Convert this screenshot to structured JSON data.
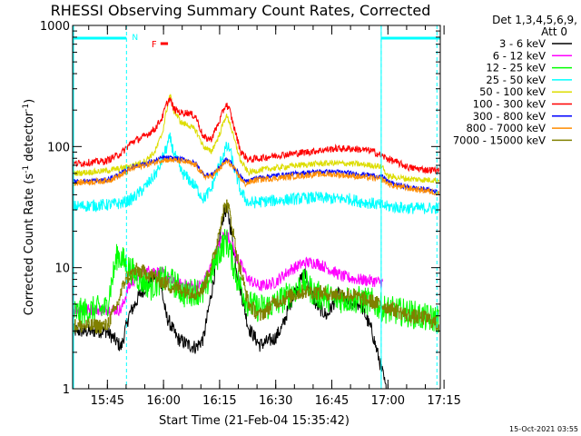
{
  "chart_data": {
    "type": "line",
    "title": "RHESSI Observing Summary Count Rates, Corrected",
    "xlabel": "Start Time (21-Feb-04 15:35:42)",
    "ylabel_main": "Corrected Count Rate (s",
    "ylabel_sup1": "-1",
    "ylabel_mid": " detector",
    "ylabel_sup2": "-1",
    "ylabel_end": ")",
    "yscale": "log",
    "ylim": [
      1,
      1000
    ],
    "xlim_minutes": [
      0,
      98.3
    ],
    "x_ticks": [
      {
        "label": "15:45",
        "minute": 9.3
      },
      {
        "label": "16:00",
        "minute": 24.3
      },
      {
        "label": "16:15",
        "minute": 39.3
      },
      {
        "label": "16:30",
        "minute": 54.3
      },
      {
        "label": "16:45",
        "minute": 69.3
      },
      {
        "label": "17:00",
        "minute": 84.3
      },
      {
        "label": "17:15",
        "minute": 99.3
      }
    ],
    "y_ticks": [
      {
        "label": "1",
        "value": 1
      },
      {
        "label": "10",
        "value": 10
      },
      {
        "label": "100",
        "value": 100
      },
      {
        "label": "1000",
        "value": 1000
      }
    ],
    "legend_header": [
      "Det 1,3,4,5,6,9,",
      "Att 0"
    ],
    "legend_position": "right",
    "series": [
      {
        "name": "3 - 6 keV",
        "color": "#000000",
        "noise": 0.06,
        "style": "flat",
        "points": [
          [
            0,
            3
          ],
          [
            9,
            3
          ],
          [
            11,
            2.6
          ],
          [
            13,
            2.2
          ],
          [
            15,
            4
          ],
          [
            18,
            6
          ],
          [
            21,
            8
          ],
          [
            23,
            9
          ],
          [
            25,
            4
          ],
          [
            28,
            2.6
          ],
          [
            31,
            2.3
          ],
          [
            33,
            2.2
          ],
          [
            35,
            2.6
          ],
          [
            38,
            9
          ],
          [
            40,
            25
          ],
          [
            41,
            30
          ],
          [
            42,
            24
          ],
          [
            44,
            9
          ],
          [
            47,
            3.2
          ],
          [
            50,
            2.3
          ],
          [
            54,
            2.6
          ],
          [
            56,
            3.2
          ],
          [
            59,
            6
          ],
          [
            62,
            9
          ],
          [
            65,
            5
          ],
          [
            68,
            4
          ],
          [
            71,
            6
          ],
          [
            74,
            5
          ],
          [
            77,
            5
          ],
          [
            80,
            3
          ],
          [
            83,
            1.3
          ],
          [
            84,
            0.9
          ]
        ]
      },
      {
        "name": "6 - 12 keV",
        "color": "#ff00ff",
        "noise": 0.05,
        "style": "flat",
        "points": [
          [
            0,
            4.5
          ],
          [
            9,
            4.5
          ],
          [
            13,
            4.5
          ],
          [
            15,
            7
          ],
          [
            18,
            9
          ],
          [
            21,
            9.5
          ],
          [
            24,
            9
          ],
          [
            27,
            7.5
          ],
          [
            30,
            7.2
          ],
          [
            33,
            7
          ],
          [
            35,
            7.5
          ],
          [
            38,
            12
          ],
          [
            40,
            18
          ],
          [
            41,
            19
          ],
          [
            42,
            17
          ],
          [
            44,
            12
          ],
          [
            47,
            8
          ],
          [
            50,
            7
          ],
          [
            54,
            7.5
          ],
          [
            58,
            9.5
          ],
          [
            62,
            11
          ],
          [
            65,
            11
          ],
          [
            68,
            10
          ],
          [
            72,
            8.5
          ],
          [
            76,
            8
          ],
          [
            80,
            7.8
          ],
          [
            83,
            7.5
          ]
        ]
      },
      {
        "name": "12 - 25 keV",
        "color": "#00ff00",
        "noise": 0.12,
        "style": "flat",
        "points": [
          [
            0,
            4.2
          ],
          [
            9,
            4.6
          ],
          [
            12,
            13
          ],
          [
            15,
            10
          ],
          [
            18,
            8
          ],
          [
            21,
            7
          ],
          [
            24,
            8
          ],
          [
            27,
            7.5
          ],
          [
            30,
            6
          ],
          [
            33,
            6.5
          ],
          [
            35,
            6
          ],
          [
            38,
            11
          ],
          [
            40,
            15
          ],
          [
            41,
            17
          ],
          [
            42,
            14
          ],
          [
            44,
            8
          ],
          [
            47,
            5
          ],
          [
            50,
            4.6
          ],
          [
            54,
            5
          ],
          [
            58,
            6
          ],
          [
            62,
            7.5
          ],
          [
            65,
            6
          ],
          [
            70,
            5.5
          ],
          [
            75,
            5.5
          ],
          [
            80,
            5.2
          ],
          [
            84,
            4.5
          ],
          [
            90,
            4.2
          ],
          [
            95,
            3.8
          ],
          [
            98,
            3.8
          ]
        ]
      },
      {
        "name": "25 - 50 keV",
        "color": "#00ffff",
        "noise": 0.05,
        "style": "flat",
        "points": [
          [
            0,
            32
          ],
          [
            9,
            33
          ],
          [
            13,
            34
          ],
          [
            16,
            37
          ],
          [
            19,
            45
          ],
          [
            21,
            53
          ],
          [
            23,
            65
          ],
          [
            24,
            80
          ],
          [
            25,
            95
          ],
          [
            26,
            118
          ],
          [
            27,
            90
          ],
          [
            29,
            62
          ],
          [
            31,
            54
          ],
          [
            33,
            46
          ],
          [
            35,
            37
          ],
          [
            37,
            44
          ],
          [
            39,
            68
          ],
          [
            41,
            98
          ],
          [
            42,
            96
          ],
          [
            43,
            70
          ],
          [
            45,
            42
          ],
          [
            47,
            34
          ],
          [
            50,
            35
          ],
          [
            55,
            36
          ],
          [
            60,
            37
          ],
          [
            65,
            38
          ],
          [
            70,
            37
          ],
          [
            74,
            37
          ],
          [
            77,
            35
          ],
          [
            80,
            34
          ],
          [
            84,
            32
          ],
          [
            90,
            31
          ],
          [
            95,
            31
          ],
          [
            98,
            31
          ]
        ]
      },
      {
        "name": "50 - 100 keV",
        "color": "#dddd00",
        "noise": 0.025,
        "style": "flat",
        "points": [
          [
            0,
            60
          ],
          [
            9,
            63
          ],
          [
            13,
            66
          ],
          [
            16,
            70
          ],
          [
            19,
            75
          ],
          [
            22,
            90
          ],
          [
            24,
            130
          ],
          [
            25,
            190
          ],
          [
            26,
            270
          ],
          [
            27,
            200
          ],
          [
            29,
            158
          ],
          [
            31,
            150
          ],
          [
            33,
            135
          ],
          [
            35,
            100
          ],
          [
            37,
            90
          ],
          [
            39,
            120
          ],
          [
            41,
            180
          ],
          [
            42,
            160
          ],
          [
            43,
            120
          ],
          [
            45,
            75
          ],
          [
            47,
            61
          ],
          [
            50,
            64
          ],
          [
            55,
            67
          ],
          [
            60,
            70
          ],
          [
            65,
            72
          ],
          [
            70,
            73
          ],
          [
            75,
            72
          ],
          [
            80,
            70
          ],
          [
            83,
            68
          ],
          [
            84,
            57
          ],
          [
            90,
            54
          ],
          [
            95,
            53
          ],
          [
            98,
            53
          ]
        ]
      },
      {
        "name": "100 - 300 keV",
        "color": "#ff0000",
        "noise": 0.03,
        "style": "flat",
        "points": [
          [
            0,
            72
          ],
          [
            9,
            76
          ],
          [
            13,
            88
          ],
          [
            16,
            110
          ],
          [
            19,
            120
          ],
          [
            22,
            140
          ],
          [
            24,
            175
          ],
          [
            25,
            220
          ],
          [
            26,
            250
          ],
          [
            27,
            205
          ],
          [
            29,
            190
          ],
          [
            31,
            190
          ],
          [
            33,
            175
          ],
          [
            35,
            118
          ],
          [
            37,
            115
          ],
          [
            39,
            155
          ],
          [
            41,
            225
          ],
          [
            42,
            200
          ],
          [
            43,
            150
          ],
          [
            45,
            90
          ],
          [
            47,
            78
          ],
          [
            50,
            80
          ],
          [
            55,
            85
          ],
          [
            60,
            88
          ],
          [
            65,
            92
          ],
          [
            70,
            96
          ],
          [
            75,
            96
          ],
          [
            80,
            92
          ],
          [
            84,
            80
          ],
          [
            90,
            67
          ],
          [
            95,
            64
          ],
          [
            98,
            64
          ]
        ]
      },
      {
        "name": "300 - 800 keV",
        "color": "#0000ff",
        "noise": 0.02,
        "style": "flat",
        "points": [
          [
            0,
            51
          ],
          [
            9,
            53
          ],
          [
            13,
            60
          ],
          [
            16,
            68
          ],
          [
            19,
            72
          ],
          [
            22,
            76
          ],
          [
            24,
            81
          ],
          [
            27,
            80
          ],
          [
            30,
            78
          ],
          [
            33,
            72
          ],
          [
            35,
            59
          ],
          [
            37,
            58
          ],
          [
            39,
            66
          ],
          [
            41,
            78
          ],
          [
            42,
            76
          ],
          [
            44,
            62
          ],
          [
            46,
            51
          ],
          [
            49,
            55
          ],
          [
            55,
            58
          ],
          [
            60,
            60
          ],
          [
            65,
            62
          ],
          [
            70,
            62
          ],
          [
            75,
            60
          ],
          [
            80,
            58
          ],
          [
            83,
            56
          ],
          [
            85,
            50
          ],
          [
            90,
            46
          ],
          [
            95,
            44
          ],
          [
            98,
            42
          ]
        ]
      },
      {
        "name": "800 - 7000 keV",
        "color": "#ff8c00",
        "noise": 0.025,
        "style": "flat",
        "points": [
          [
            0,
            50
          ],
          [
            9,
            52
          ],
          [
            13,
            58
          ],
          [
            16,
            66
          ],
          [
            19,
            70
          ],
          [
            22,
            74
          ],
          [
            24,
            78
          ],
          [
            27,
            77
          ],
          [
            30,
            75
          ],
          [
            33,
            70
          ],
          [
            35,
            57
          ],
          [
            37,
            56
          ],
          [
            39,
            64
          ],
          [
            41,
            75
          ],
          [
            42,
            73
          ],
          [
            44,
            60
          ],
          [
            46,
            49
          ],
          [
            49,
            53
          ],
          [
            55,
            55
          ],
          [
            60,
            57
          ],
          [
            65,
            59
          ],
          [
            70,
            59
          ],
          [
            75,
            57
          ],
          [
            80,
            55
          ],
          [
            83,
            53
          ],
          [
            85,
            48
          ],
          [
            90,
            45
          ],
          [
            95,
            43
          ],
          [
            98,
            41
          ]
        ]
      },
      {
        "name": "7000 - 15000 keV",
        "color": "#808000",
        "noise": 0.06,
        "style": "step",
        "points": [
          [
            0,
            3.3
          ],
          [
            9,
            3.3
          ],
          [
            12,
            5
          ],
          [
            14,
            8
          ],
          [
            17,
            9.5
          ],
          [
            20,
            9
          ],
          [
            23,
            8
          ],
          [
            26,
            7
          ],
          [
            30,
            6.5
          ],
          [
            33,
            6.2
          ],
          [
            35,
            6.8
          ],
          [
            38,
            13
          ],
          [
            40,
            28
          ],
          [
            41,
            34
          ],
          [
            42,
            28
          ],
          [
            44,
            12
          ],
          [
            47,
            5
          ],
          [
            50,
            4
          ],
          [
            54,
            5.2
          ],
          [
            58,
            5.8
          ],
          [
            62,
            6.4
          ],
          [
            66,
            6.2
          ],
          [
            70,
            6
          ],
          [
            74,
            6
          ],
          [
            78,
            5.5
          ],
          [
            82,
            5
          ],
          [
            86,
            4.5
          ],
          [
            90,
            4
          ],
          [
            95,
            3.8
          ],
          [
            98,
            3.3
          ]
        ]
      }
    ],
    "flags": {
      "night_labels": [
        "N"
      ],
      "flare_label": "F",
      "segments_minutes": [
        [
          0,
          14.4
        ],
        [
          82.5,
          98.3
        ]
      ],
      "flare_minutes": [
        23.5,
        25.5
      ],
      "boundary_minutes": [
        14.4,
        82.5,
        97.4
      ]
    }
  },
  "footer": {
    "timestamp": "15-Oct-2021 03:55"
  }
}
